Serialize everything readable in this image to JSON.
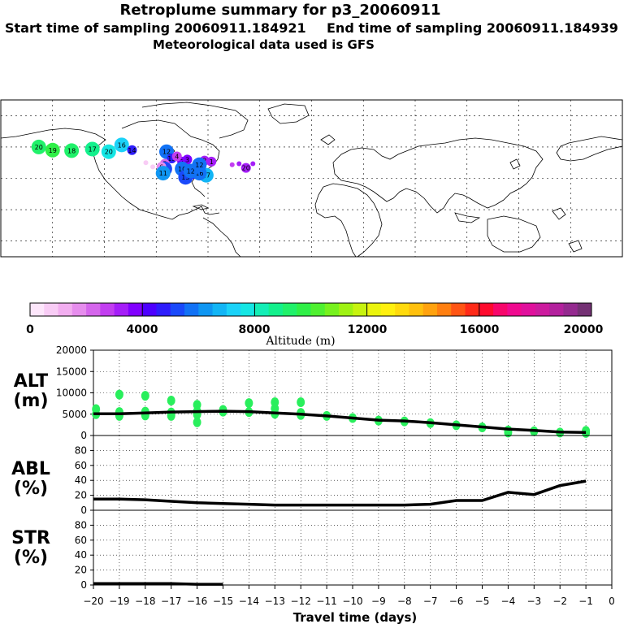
{
  "header": {
    "title": "Retroplume summary for p3_20060911",
    "start": "Start time of sampling 20060911.184921",
    "end": "End time of sampling 20060911.184939",
    "met": "Meteorological data used is GFS"
  },
  "map": {
    "markers": [
      {
        "label": "20",
        "lon": -117.5,
        "lat": 25.5,
        "alt": 7800
      },
      {
        "label": "16",
        "lon": -110,
        "lat": 32,
        "alt": 7400
      },
      {
        "label": "17",
        "lon": -127,
        "lat": 28,
        "alt": 8600
      },
      {
        "label": "18",
        "lon": -139,
        "lat": 26.5,
        "alt": 9200
      },
      {
        "label": "19",
        "lon": -150,
        "lat": 27,
        "alt": 9800
      },
      {
        "label": "20",
        "lon": -158,
        "lat": 30,
        "alt": 9400
      },
      {
        "label": "14",
        "lon": -104,
        "lat": 27,
        "alt": 4500
      },
      {
        "label": "12",
        "lon": -84,
        "lat": 25.5,
        "alt": 5600
      },
      {
        "label": "13",
        "lon": -81,
        "lat": 19,
        "alt": 4600
      },
      {
        "label": "5",
        "lon": -85,
        "lat": 14,
        "alt": 2300
      },
      {
        "label": "7",
        "lon": -75,
        "lat": 16,
        "alt": 3600
      },
      {
        "label": "8",
        "lon": -85,
        "lat": 9,
        "alt": 5400
      },
      {
        "label": "6",
        "lon": -87,
        "lat": 11,
        "alt": 1500
      },
      {
        "label": "4",
        "lon": -78,
        "lat": 21,
        "alt": 2700
      },
      {
        "label": "3",
        "lon": -72,
        "lat": 18,
        "alt": 3900
      },
      {
        "label": "10",
        "lon": -75,
        "lat": 9,
        "alt": 5700
      },
      {
        "label": "11",
        "lon": -86,
        "lat": 5,
        "alt": 6100
      },
      {
        "label": "9",
        "lon": -69,
        "lat": 4,
        "alt": 4700
      },
      {
        "label": "17",
        "lon": -61,
        "lat": 3,
        "alt": 6500
      },
      {
        "label": "16",
        "lon": -65,
        "lat": 5,
        "alt": 5800
      },
      {
        "label": "13",
        "lon": -73,
        "lat": 1,
        "alt": 5200
      },
      {
        "label": "12",
        "lon": -70,
        "lat": 7,
        "alt": 5900
      },
      {
        "label": "2",
        "lon": -62,
        "lat": 17,
        "alt": 3400
      },
      {
        "label": "1",
        "lon": -58,
        "lat": 16,
        "alt": 3000
      },
      {
        "label": "12",
        "lon": -65,
        "lat": 13,
        "alt": 5600
      },
      {
        "label": "20",
        "lon": -38,
        "lat": 10,
        "alt": 3300
      },
      {
        "label": "",
        "lon": -46,
        "lat": 13,
        "alt": 2900
      },
      {
        "label": "",
        "lon": -42,
        "lat": 14,
        "alt": 3100
      },
      {
        "label": "",
        "lon": -34,
        "lat": 14,
        "alt": 3300
      },
      {
        "label": "",
        "lon": -96,
        "lat": 15,
        "alt": 600
      },
      {
        "label": "",
        "lon": -92,
        "lat": 11,
        "alt": 800
      }
    ]
  },
  "colorbar": {
    "ticks": [
      "0",
      "4000",
      "8000",
      "12000",
      "16000",
      "20000"
    ],
    "label": "Altitude (m)",
    "colors": [
      "#fde6fb",
      "#f8ccf5",
      "#f2aef0",
      "#e68ded",
      "#d566ec",
      "#c23ef0",
      "#a51ef8",
      "#8100ff",
      "#4d00ff",
      "#2e1dfc",
      "#1a49fa",
      "#1272f5",
      "#0f96f2",
      "#12b5f5",
      "#1bd2f8",
      "#15e6e4",
      "#13eeb6",
      "#13f08c",
      "#20f16a",
      "#2fef47",
      "#4ff030",
      "#77f11e",
      "#9ff213",
      "#c7f30f",
      "#ebf40d",
      "#fff00f",
      "#ffda0d",
      "#ffc00d",
      "#ffa20e",
      "#ff7f10",
      "#ff5514",
      "#ff2a18",
      "#ff0b2e",
      "#f7076b",
      "#ef0a8f",
      "#e0109c",
      "#cc1b9e",
      "#b3219d",
      "#942a8f",
      "#743174"
    ]
  },
  "chart_data": {
    "type": "line",
    "x": [
      -20,
      -19,
      -18,
      -17,
      -16,
      -15,
      -14,
      -13,
      -12,
      -11,
      -10,
      -9,
      -8,
      -7,
      -6,
      -5,
      -4,
      -3,
      -2,
      -1
    ],
    "xlabel": "Travel time (days)",
    "xticks": [
      "−20",
      "−19",
      "−18",
      "−17",
      "−16",
      "−15",
      "−14",
      "−13",
      "−12",
      "−11",
      "−10",
      "−9",
      "−8",
      "−7",
      "−6",
      "−5",
      "−4",
      "−3",
      "−2",
      "−1",
      "0"
    ],
    "xlim": [
      -20,
      0
    ],
    "panels": [
      {
        "name": "ALT",
        "unit": "(m)",
        "ylim": [
          0,
          20000
        ],
        "yticks": [
          "20000",
          "15000",
          "10000",
          "5000",
          "0"
        ],
        "line": [
          5100,
          5100,
          5300,
          5500,
          5600,
          5700,
          5600,
          5300,
          5000,
          4600,
          4100,
          3600,
          3400,
          3000,
          2500,
          2000,
          1500,
          1200,
          800,
          700
        ],
        "points": [
          [
            -19.9,
            5000
          ],
          [
            -19.9,
            6200
          ],
          [
            -19,
            4600
          ],
          [
            -19,
            5500
          ],
          [
            -19,
            9600
          ],
          [
            -18,
            4700
          ],
          [
            -18,
            5600
          ],
          [
            -18,
            9300
          ],
          [
            -17,
            4600
          ],
          [
            -17,
            5400
          ],
          [
            -17,
            8200
          ],
          [
            -16,
            4900
          ],
          [
            -16,
            5700
          ],
          [
            -16,
            7200
          ],
          [
            -16,
            3100
          ],
          [
            -15,
            5600
          ],
          [
            -15,
            6000
          ],
          [
            -14,
            5500
          ],
          [
            -14,
            7600
          ],
          [
            -13,
            5100
          ],
          [
            -13,
            6300
          ],
          [
            -13,
            7800
          ],
          [
            -12,
            4800
          ],
          [
            -12,
            5300
          ],
          [
            -12,
            7800
          ],
          [
            -11,
            4600
          ],
          [
            -10,
            4100
          ],
          [
            -9,
            3500
          ],
          [
            -8,
            3300
          ],
          [
            -7,
            2900
          ],
          [
            -6,
            2400
          ],
          [
            -5,
            1900
          ],
          [
            -4,
            1200
          ],
          [
            -4,
            700
          ],
          [
            -3,
            1000
          ],
          [
            -2,
            700
          ],
          [
            -1,
            600
          ],
          [
            -1,
            1100
          ]
        ]
      },
      {
        "name": "ABL",
        "unit": "(%)",
        "ylim": [
          0,
          100
        ],
        "yticks": [
          "80",
          "60",
          "40",
          "20",
          "0"
        ],
        "line": [
          15,
          15,
          14,
          12,
          10,
          9,
          8,
          7,
          7,
          7,
          7,
          7,
          7,
          8,
          13,
          13,
          24,
          21,
          33,
          39
        ]
      },
      {
        "name": "STR",
        "unit": "(%)",
        "ylim": [
          0,
          100
        ],
        "yticks": [
          "80",
          "60",
          "40",
          "20",
          "0"
        ],
        "line": [
          2,
          2,
          2,
          2,
          1,
          1
        ]
      }
    ]
  }
}
